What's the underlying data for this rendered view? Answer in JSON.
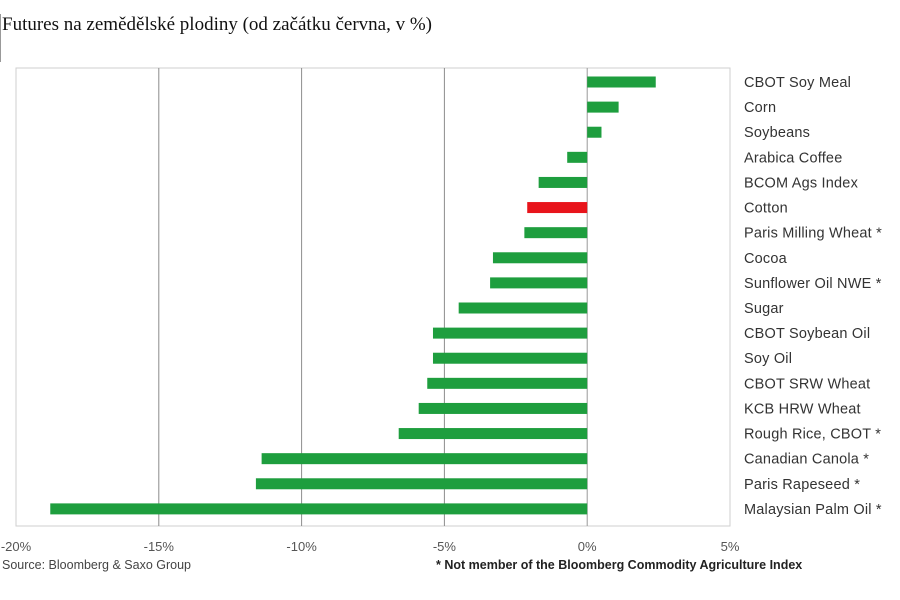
{
  "chart_data": {
    "type": "bar",
    "orientation": "horizontal",
    "title": "Futures na zemědělské plodiny (od začátku června, v %)",
    "xlabel": "",
    "ylabel": "",
    "xlim": [
      -20,
      5
    ],
    "x_ticks": [
      -20,
      -15,
      -10,
      -5,
      0,
      5
    ],
    "x_tick_labels": [
      "-20%",
      "-15%",
      "-10%",
      "-5%",
      "0%",
      "5%"
    ],
    "categories": [
      "CBOT Soy Meal",
      "Corn",
      "Soybeans",
      "Arabica Coffee",
      "BCOM Ags Index",
      "Cotton",
      "Paris Milling Wheat *",
      "Cocoa",
      "Sunflower Oil NWE *",
      "Sugar",
      "CBOT Soybean Oil",
      "Soy Oil",
      "CBOT SRW Wheat",
      "KCB HRW Wheat",
      "Rough Rice, CBOT *",
      "Canadian Canola *",
      "Paris Rapeseed *",
      "Malaysian Palm Oil *"
    ],
    "values": [
      2.4,
      1.1,
      0.5,
      -0.7,
      -1.7,
      -2.1,
      -2.2,
      -3.3,
      -3.4,
      -4.5,
      -5.4,
      -5.4,
      -5.6,
      -5.9,
      -6.6,
      -11.4,
      -11.6,
      -18.8
    ],
    "highlight_category": "Cotton",
    "colors": {
      "default": "#1e9e3e",
      "highlight": "#e8141b"
    },
    "grid": "vertical",
    "source": "Source: Bloomberg & Saxo Group",
    "note": "* Not member of the Bloomberg Commodity Agriculture Index"
  }
}
